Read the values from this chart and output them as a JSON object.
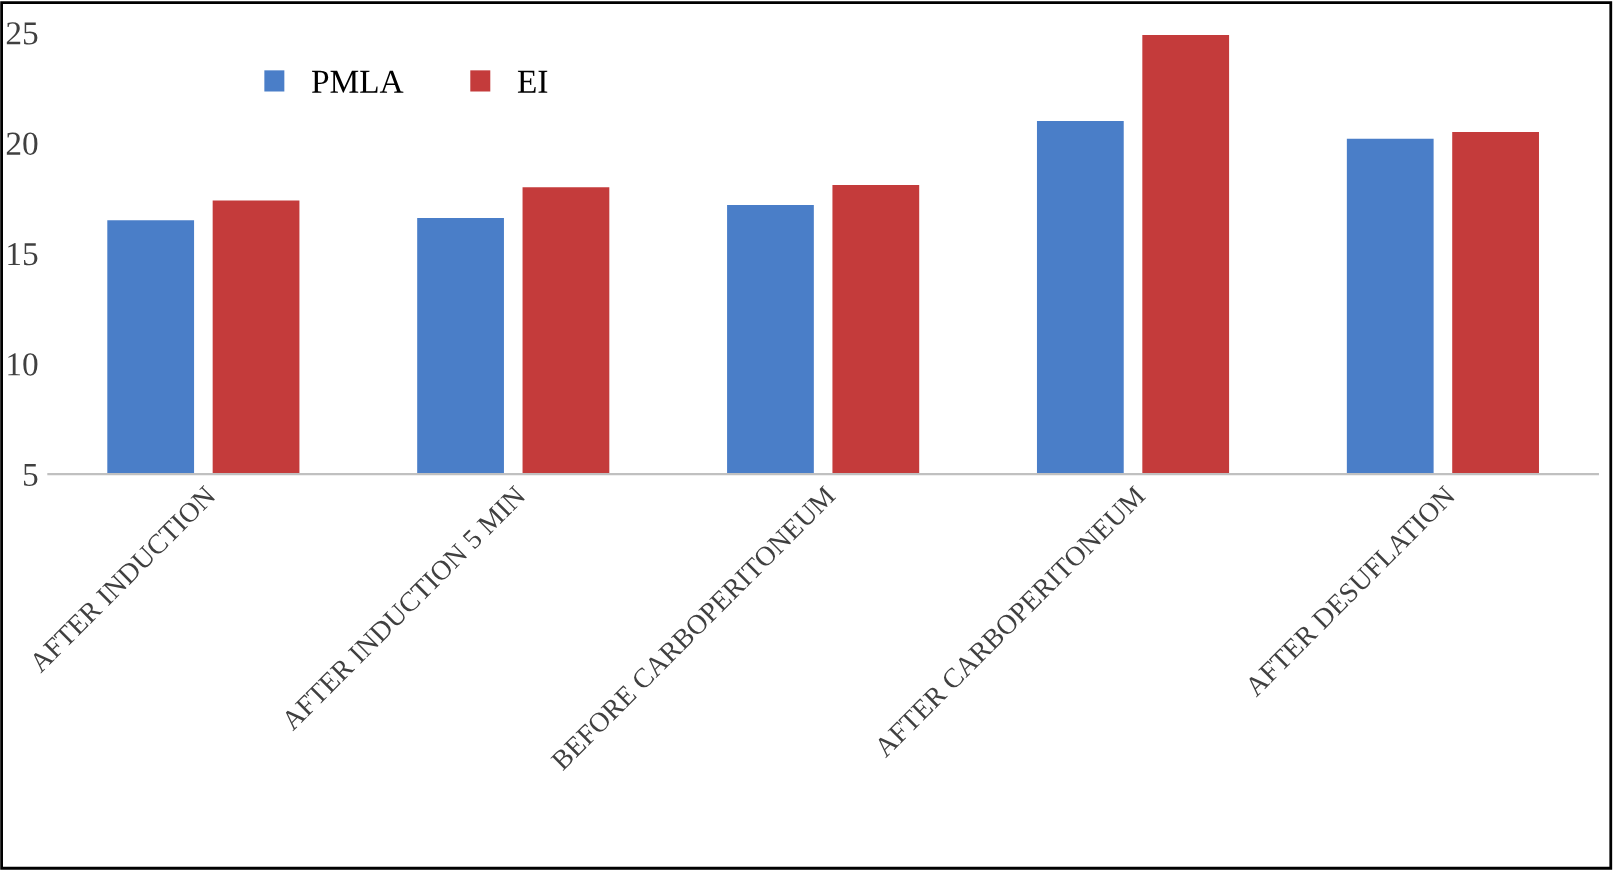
{
  "chart_data": {
    "type": "bar",
    "categories": [
      "AFTER INDUCTION",
      "AFTER INDUCTION 5 MIN",
      "BEFORE CARBOPERITONEUM",
      "AFTER CARBOPERITONEUM",
      "AFTER DESUFLATION"
    ],
    "series": [
      {
        "name": "PMLA",
        "color": "#4a7ec8",
        "values": [
          16.5,
          16.6,
          17.2,
          21.0,
          20.2
        ]
      },
      {
        "name": "EI",
        "color": "#c43b3b",
        "values": [
          17.4,
          18.0,
          18.1,
          24.9,
          20.5
        ]
      }
    ],
    "ylim": [
      5,
      25.3
    ],
    "yticks": [
      5,
      10,
      15,
      20,
      25
    ],
    "grid": false,
    "legend": "top left"
  }
}
